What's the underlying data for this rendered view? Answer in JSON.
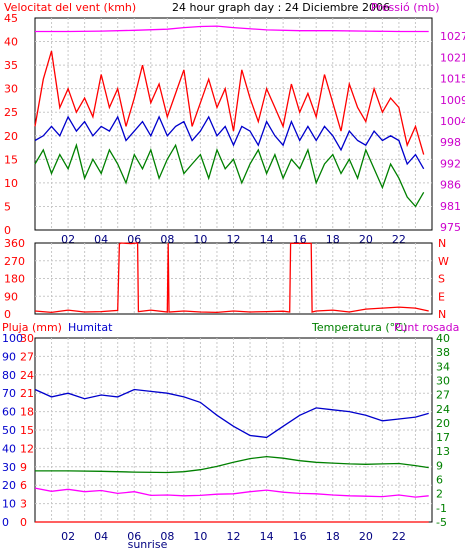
{
  "header": {
    "left_label": "Velocitat del vent (kmh)",
    "center_label": "24 hour graph day : 24 Diciembre 2006",
    "right_label": "Pressió (mb)"
  },
  "chart_data": [
    {
      "type": "line",
      "title": "24 hour graph day : 24 Diciembre 2006",
      "ylabel": "Velocitat del vent (kmh)",
      "y2label": "Pressió (mb)",
      "ylim": [
        0,
        45
      ],
      "y2lim": [
        975,
        1030
      ],
      "yticks": [
        0,
        5,
        10,
        15,
        20,
        25,
        30,
        35,
        40,
        45
      ],
      "y2ticks": [
        975,
        981,
        986,
        992,
        998,
        1004,
        1009,
        1015,
        1021,
        1027
      ],
      "xticks": [
        "02",
        "04",
        "06",
        "08",
        "10",
        "12",
        "14",
        "16",
        "18",
        "20",
        "22"
      ],
      "x_annotation": "sunrise",
      "grid": true,
      "series": [
        {
          "color": "#ff0000",
          "axis": "left",
          "x": [
            0,
            0.5,
            1,
            1.5,
            2,
            2.5,
            3,
            3.5,
            4,
            4.5,
            5,
            5.5,
            6,
            6.5,
            7,
            7.5,
            8,
            8.5,
            9,
            9.5,
            10,
            10.5,
            11,
            11.5,
            12,
            12.5,
            13,
            13.5,
            14,
            14.5,
            15,
            15.5,
            16,
            16.5,
            17,
            17.5,
            18,
            18.5,
            19,
            19.5,
            20,
            20.5,
            21,
            21.5,
            22,
            22.5,
            23,
            23.5
          ],
          "values": [
            22,
            32,
            38,
            26,
            30,
            25,
            28,
            24,
            33,
            26,
            30,
            22,
            28,
            35,
            27,
            31,
            24,
            29,
            34,
            22,
            27,
            32,
            26,
            30,
            21,
            34,
            28,
            23,
            30,
            26,
            22,
            31,
            25,
            29,
            24,
            33,
            27,
            21,
            31,
            26,
            23,
            30,
            25,
            28,
            26,
            18,
            22,
            16
          ]
        },
        {
          "color": "#0000cc",
          "axis": "left",
          "x": [
            0,
            0.5,
            1,
            1.5,
            2,
            2.5,
            3,
            3.5,
            4,
            4.5,
            5,
            5.5,
            6,
            6.5,
            7,
            7.5,
            8,
            8.5,
            9,
            9.5,
            10,
            10.5,
            11,
            11.5,
            12,
            12.5,
            13,
            13.5,
            14,
            14.5,
            15,
            15.5,
            16,
            16.5,
            17,
            17.5,
            18,
            18.5,
            19,
            19.5,
            20,
            20.5,
            21,
            21.5,
            22,
            22.5,
            23,
            23.5
          ],
          "values": [
            19,
            20,
            22,
            20,
            24,
            21,
            23,
            20,
            22,
            21,
            24,
            19,
            21,
            23,
            20,
            24,
            20,
            22,
            23,
            19,
            21,
            24,
            20,
            22,
            18,
            22,
            21,
            18,
            23,
            20,
            18,
            23,
            19,
            22,
            19,
            22,
            20,
            17,
            21,
            19,
            18,
            21,
            19,
            20,
            19,
            14,
            16,
            13
          ]
        },
        {
          "color": "#008000",
          "axis": "left",
          "x": [
            0,
            0.5,
            1,
            1.5,
            2,
            2.5,
            3,
            3.5,
            4,
            4.5,
            5,
            5.5,
            6,
            6.5,
            7,
            7.5,
            8,
            8.5,
            9,
            9.5,
            10,
            10.5,
            11,
            11.5,
            12,
            12.5,
            13,
            13.5,
            14,
            14.5,
            15,
            15.5,
            16,
            16.5,
            17,
            17.5,
            18,
            18.5,
            19,
            19.5,
            20,
            20.5,
            21,
            21.5,
            22,
            22.5,
            23,
            23.5
          ],
          "values": [
            14,
            17,
            12,
            16,
            13,
            18,
            11,
            15,
            12,
            17,
            14,
            10,
            16,
            13,
            17,
            11,
            15,
            18,
            12,
            14,
            16,
            11,
            17,
            13,
            15,
            10,
            14,
            17,
            12,
            16,
            11,
            15,
            13,
            17,
            10,
            14,
            16,
            12,
            15,
            11,
            17,
            13,
            9,
            14,
            11,
            7,
            5,
            8
          ]
        },
        {
          "color": "#ff00ff",
          "axis": "right",
          "x": [
            0,
            2,
            4,
            6,
            8,
            9,
            10,
            11,
            12,
            14,
            16,
            18,
            20,
            22,
            23.8
          ],
          "values": [
            1026.5,
            1026.5,
            1026.6,
            1026.8,
            1027.1,
            1027.5,
            1027.8,
            1027.9,
            1027.5,
            1026.9,
            1026.7,
            1026.7,
            1026.6,
            1026.5,
            1026.5
          ]
        }
      ]
    },
    {
      "type": "line",
      "ylim": [
        0,
        360
      ],
      "yticks": [
        0,
        90,
        180,
        270,
        360
      ],
      "y2ticks": [
        "N",
        "W",
        "S",
        "E",
        "N"
      ],
      "xticks": [],
      "grid": true,
      "series": [
        {
          "color": "#ff0000",
          "x": [
            0,
            1,
            2,
            3,
            4,
            5,
            5.1,
            5.2,
            5.8,
            6.2,
            6.25,
            7,
            8,
            8.05,
            8.1,
            9,
            10,
            11,
            12,
            13,
            14,
            15,
            15.4,
            15.45,
            16.7,
            16.75,
            17,
            18,
            19,
            20,
            21,
            22,
            23,
            23.8
          ],
          "values": [
            15,
            8,
            20,
            10,
            12,
            18,
            355,
            360,
            357,
            360,
            12,
            20,
            10,
            360,
            10,
            15,
            10,
            8,
            15,
            10,
            12,
            14,
            10,
            358,
            358,
            10,
            15,
            20,
            10,
            25,
            30,
            35,
            30,
            15
          ]
        }
      ]
    },
    {
      "type": "line",
      "header_left": "Pluja (mm)",
      "header_humitat": "Humitat",
      "header_temp": "Temperatura (°C)",
      "header_dew": "Punt rosada",
      "ylim": [
        -5,
        40
      ],
      "yticks_rain": [
        0,
        10,
        20,
        30,
        40,
        50,
        60,
        70,
        80,
        90,
        100
      ],
      "yticks_inner": [
        0,
        3,
        6,
        9,
        12,
        15,
        18,
        21,
        24,
        27,
        30
      ],
      "y2ticks": [
        -5,
        -1,
        2,
        6,
        9,
        13,
        17,
        20,
        24,
        27,
        30,
        34,
        38,
        40
      ],
      "y2ticks_display": [
        "-5",
        "-1",
        "2",
        "6",
        "9",
        "13",
        "17",
        "20",
        "24",
        "27",
        "30",
        "34",
        "38",
        "40"
      ],
      "xticks": [
        "02",
        "04",
        "06",
        "08",
        "10",
        "12",
        "14",
        "16",
        "18",
        "20",
        "22"
      ],
      "x_annotation": "sunrise",
      "grid": true,
      "series": [
        {
          "name": "Humitat",
          "color": "#0000cc",
          "scale": "rain",
          "x": [
            0,
            1,
            2,
            3,
            4,
            5,
            6,
            7,
            8,
            9,
            10,
            11,
            12,
            13,
            14,
            15,
            16,
            17,
            18,
            19,
            20,
            21,
            22,
            23,
            23.8
          ],
          "values": [
            72,
            68,
            70,
            67,
            69,
            68,
            72,
            71,
            70,
            68,
            65,
            58,
            52,
            47,
            46,
            52,
            58,
            62,
            61,
            60,
            58,
            55,
            56,
            57,
            59
          ]
        },
        {
          "name": "Temperatura (°C)",
          "color": "#008000",
          "scale": "temp",
          "x": [
            0,
            2,
            4,
            6,
            8,
            9,
            10,
            11,
            12,
            13,
            14,
            15,
            16,
            17,
            18,
            19,
            20,
            21,
            22,
            23,
            23.8
          ],
          "values": [
            7.5,
            7.5,
            7.4,
            7.2,
            7.1,
            7.3,
            7.8,
            8.6,
            9.6,
            10.5,
            11,
            10.6,
            10,
            9.6,
            9.4,
            9.2,
            9.1,
            9.2,
            9.3,
            8.8,
            8.3
          ]
        },
        {
          "name": "Punt rosada",
          "color": "#ff00ff",
          "scale": "temp",
          "x": [
            0,
            1,
            2,
            3,
            4,
            5,
            6,
            7,
            8,
            9,
            10,
            11,
            12,
            13,
            14,
            15,
            16,
            17,
            18,
            19,
            20,
            21,
            22,
            23,
            23.8
          ],
          "values": [
            3.3,
            2.5,
            3,
            2.4,
            2.7,
            2,
            2.4,
            1.5,
            1.6,
            1.4,
            1.5,
            1.8,
            1.9,
            2.4,
            2.8,
            2.3,
            2,
            1.9,
            1.6,
            1.4,
            1.3,
            1.2,
            1.6,
            1.1,
            1.4
          ]
        },
        {
          "name": "Pluja (mm)",
          "color": "#ff0000",
          "scale": "rain",
          "x": [
            0,
            23.8
          ],
          "values": [
            0,
            0
          ]
        }
      ]
    }
  ]
}
